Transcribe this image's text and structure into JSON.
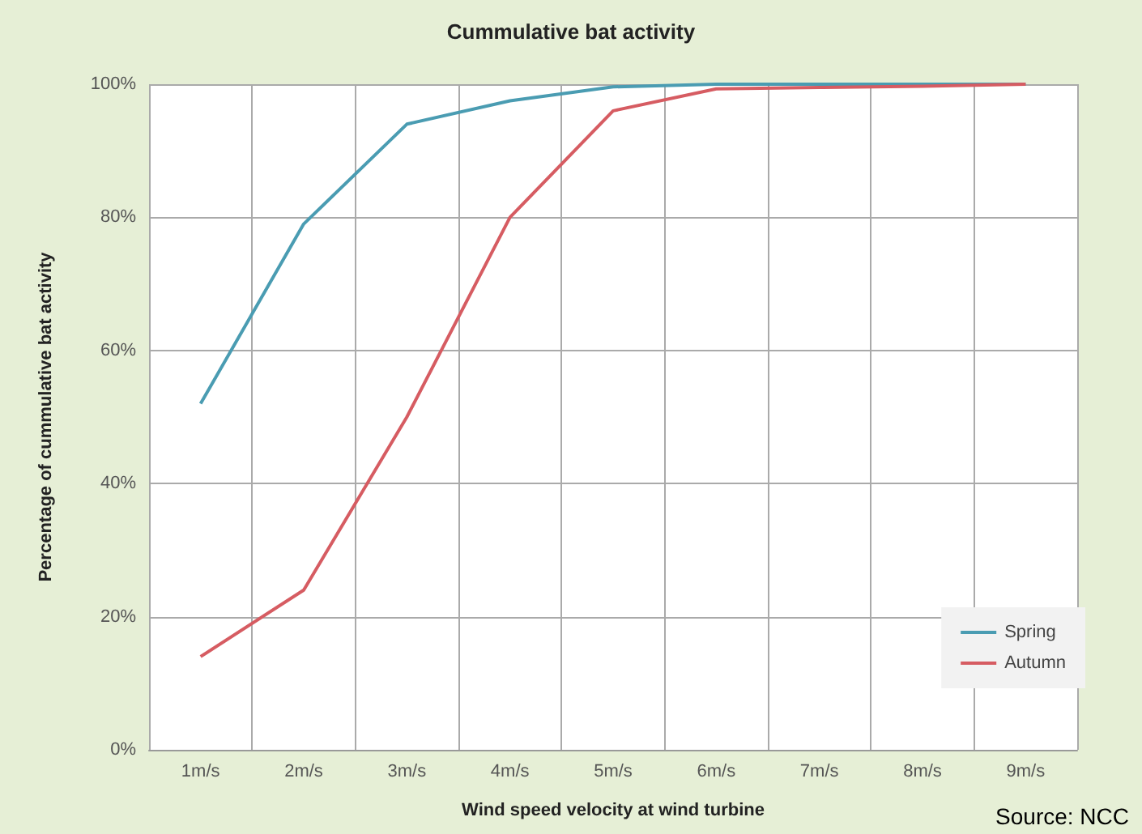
{
  "chart_data": {
    "type": "line",
    "title": "Cummulative bat activity",
    "xlabel": "Wind speed velocity at wind turbine",
    "ylabel": "Percentage of cummulative bat activity",
    "categories": [
      "1m/s",
      "2m/s",
      "3m/s",
      "4m/s",
      "5m/s",
      "6m/s",
      "7m/s",
      "8m/s",
      "9m/s"
    ],
    "series": [
      {
        "name": "Spring",
        "color": "#4a9cb2",
        "values": [
          52,
          79,
          94,
          97.5,
          99.6,
          100,
          100,
          100,
          100
        ]
      },
      {
        "name": "Autumn",
        "color": "#d65c62",
        "values": [
          14,
          24,
          50,
          80,
          96,
          99.3,
          99.5,
          99.7,
          100
        ]
      }
    ],
    "ylim": [
      0,
      100
    ],
    "yticks": [
      {
        "value": 0,
        "label": "0%"
      },
      {
        "value": 20,
        "label": "20%"
      },
      {
        "value": 40,
        "label": "40%"
      },
      {
        "value": 60,
        "label": "60%"
      },
      {
        "value": 80,
        "label": "80%"
      },
      {
        "value": 100,
        "label": "100%"
      }
    ],
    "grid": true,
    "legend": "bottom right",
    "marker": "none",
    "line_style": "solid",
    "annotations": [
      "Source: NCC"
    ]
  }
}
